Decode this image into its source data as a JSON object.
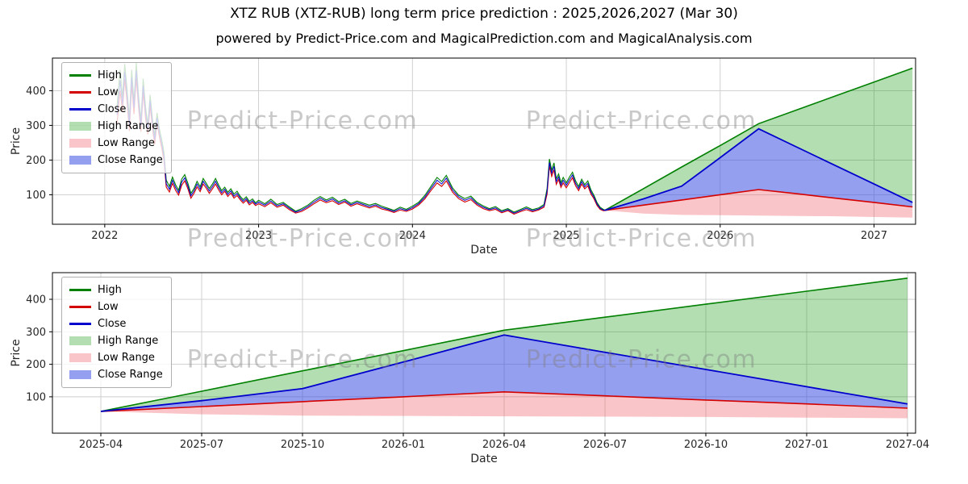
{
  "title": "XTZ RUB (XTZ-RUB) long term price prediction : 2025,2026,2027 (Mar 30)",
  "subtitle": "powered by Predict-Price.com and MagicalPrediction.com and MagicalAnalysis.com",
  "watermark_text": "Predict-Price.com",
  "colors": {
    "high_line": "#008000",
    "low_line": "#d40000",
    "close_line": "#0000cc",
    "high_range": "rgba(0,145,0,0.30)",
    "low_range": "rgba(240,75,85,0.32)",
    "close_range": "rgba(62,80,225,0.55)",
    "grid": "#cccccc",
    "spine": "#000000",
    "tick_text": "#262626",
    "watermark": "#808080"
  },
  "legend": {
    "items": [
      {
        "label": "High",
        "type": "line",
        "color": "high_line"
      },
      {
        "label": "Low",
        "type": "line",
        "color": "low_line"
      },
      {
        "label": "Close",
        "type": "line",
        "color": "close_line"
      },
      {
        "label": "High Range",
        "type": "patch",
        "color": "high_range"
      },
      {
        "label": "Low Range",
        "type": "patch",
        "color": "low_range"
      },
      {
        "label": "Close Range",
        "type": "patch",
        "color": "close_range"
      }
    ]
  },
  "chart_data": [
    {
      "type": "line",
      "title": "",
      "xlabel": "Date",
      "ylabel": "Price",
      "xlim": [
        2021.66,
        2027.27
      ],
      "ylim": [
        15,
        494
      ],
      "grid": true,
      "legend_position": "upper-left",
      "xticks": [
        2022,
        2023,
        2024,
        2025,
        2026,
        2027
      ],
      "xtick_labels": [
        "2022",
        "2023",
        "2024",
        "2025",
        "2026",
        "2027"
      ],
      "yticks": [
        100,
        200,
        300,
        400
      ],
      "ytick_labels": [
        "100",
        "200",
        "300",
        "400"
      ],
      "history": {
        "t": [
          2022.08,
          2022.1,
          2022.115,
          2022.13,
          2022.145,
          2022.16,
          2022.175,
          2022.19,
          2022.205,
          2022.22,
          2022.235,
          2022.25,
          2022.265,
          2022.28,
          2022.295,
          2022.31,
          2022.325,
          2022.34,
          2022.355,
          2022.37,
          2022.385,
          2022.4,
          2022.42,
          2022.44,
          2022.46,
          2022.48,
          2022.5,
          2022.52,
          2022.54,
          2022.56,
          2022.58,
          2022.6,
          2022.62,
          2022.64,
          2022.66,
          2022.68,
          2022.7,
          2022.72,
          2022.74,
          2022.76,
          2022.78,
          2022.8,
          2022.82,
          2022.84,
          2022.86,
          2022.88,
          2022.9,
          2022.92,
          2022.94,
          2022.96,
          2022.98,
          2023.0,
          2023.04,
          2023.08,
          2023.12,
          2023.16,
          2023.2,
          2023.24,
          2023.28,
          2023.32,
          2023.36,
          2023.4,
          2023.44,
          2023.48,
          2023.52,
          2023.56,
          2023.6,
          2023.64,
          2023.68,
          2023.72,
          2023.76,
          2023.8,
          2023.84,
          2023.88,
          2023.92,
          2023.96,
          2024.0,
          2024.04,
          2024.08,
          2024.12,
          2024.16,
          2024.19,
          2024.22,
          2024.26,
          2024.3,
          2024.34,
          2024.38,
          2024.42,
          2024.46,
          2024.5,
          2024.54,
          2024.58,
          2024.62,
          2024.66,
          2024.7,
          2024.74,
          2024.78,
          2024.82,
          2024.855,
          2024.875,
          2024.89,
          2024.905,
          2024.92,
          2024.935,
          2024.95,
          2024.965,
          2024.98,
          2025.0,
          2025.02,
          2025.04,
          2025.06,
          2025.08,
          2025.1,
          2025.12,
          2025.14,
          2025.16,
          2025.18,
          2025.2,
          2025.22,
          2025.24,
          2025.25
        ],
        "close": [
          330,
          430,
          360,
          455,
          385,
          302,
          438,
          350,
          458,
          368,
          298,
          415,
          338,
          288,
          372,
          305,
          258,
          322,
          278,
          248,
          210,
          132,
          116,
          142,
          121,
          106,
          136,
          149,
          126,
          97,
          111,
          131,
          116,
          139,
          126,
          111,
          124,
          139,
          121,
          106,
          116,
          101,
          111,
          96,
          104,
          91,
          81,
          89,
          76,
          83,
          73,
          79,
          70,
          82,
          68,
          74,
          61,
          50,
          56,
          66,
          79,
          90,
          81,
          88,
          76,
          83,
          71,
          78,
          72,
          66,
          71,
          63,
          58,
          52,
          60,
          55,
          63,
          74,
          93,
          118,
          142,
          131,
          148,
          114,
          94,
          84,
          91,
          74,
          64,
          57,
          62,
          51,
          57,
          47,
          54,
          61,
          54,
          59,
          68,
          110,
          193,
          162,
          182,
          138,
          152,
          128,
          142,
          127,
          143,
          157,
          133,
          118,
          138,
          123,
          133,
          108,
          93,
          73,
          61,
          56,
          55
        ],
        "spread": [
          25,
          30,
          20,
          22,
          20,
          18,
          22,
          18,
          22,
          18,
          16,
          20,
          16,
          14,
          16,
          14,
          13,
          14,
          12,
          12,
          12,
          10,
          8,
          9,
          8,
          7,
          9,
          9,
          8,
          7,
          7,
          8,
          7,
          8,
          7,
          7,
          7,
          8,
          7,
          6,
          6,
          6,
          6,
          6,
          6,
          5,
          5,
          5,
          5,
          5,
          4,
          5,
          4,
          5,
          4,
          4,
          4,
          3,
          4,
          4,
          5,
          5,
          4,
          5,
          4,
          4,
          4,
          4,
          4,
          4,
          4,
          4,
          3,
          3,
          4,
          3,
          4,
          4,
          5,
          6,
          8,
          7,
          8,
          6,
          5,
          5,
          5,
          4,
          4,
          3,
          4,
          3,
          3,
          3,
          3,
          4,
          3,
          3,
          4,
          8,
          10,
          9,
          10,
          8,
          8,
          7,
          8,
          7,
          8,
          8,
          7,
          6,
          7,
          6,
          7,
          6,
          5,
          4,
          3,
          2,
          1
        ]
      },
      "forecast": {
        "t": [
          2025.25,
          2025.5,
          2025.75,
          2026.0,
          2026.25,
          2026.5,
          2026.75,
          2027.0,
          2027.25
        ],
        "dates": [
          "2025-04",
          "2025-07",
          "2025-10",
          "2026-01",
          "2026-04",
          "2026-07",
          "2026-10",
          "2027-01",
          "2027-04"
        ],
        "high": [
          55,
          117,
          180,
          242,
          305,
          345,
          385,
          425,
          465
        ],
        "close": [
          55,
          88,
          125,
          207,
          290,
          237,
          184,
          131,
          78
        ],
        "low": [
          55,
          70,
          85,
          100,
          115,
          103,
          90,
          78,
          65
        ],
        "low_band_bottom": [
          55,
          46,
          42,
          41,
          40,
          39,
          38,
          36,
          34
        ]
      }
    },
    {
      "type": "line",
      "title": "",
      "xlabel": "Date",
      "ylabel": "Price",
      "xlim": [
        2025.13,
        2027.27
      ],
      "ylim": [
        -12,
        482
      ],
      "grid": true,
      "legend_position": "upper-left",
      "xticks": [
        2025.25,
        2025.5,
        2025.75,
        2026.0,
        2026.25,
        2026.5,
        2026.75,
        2027.0,
        2027.25
      ],
      "xtick_labels": [
        "2025-04",
        "2025-07",
        "2025-10",
        "2026-01",
        "2026-04",
        "2026-07",
        "2026-10",
        "2027-01",
        "2027-04"
      ],
      "yticks": [
        100,
        200,
        300,
        400
      ],
      "ytick_labels": [
        "100",
        "200",
        "300",
        "400"
      ],
      "forecast": {
        "t": [
          2025.25,
          2025.5,
          2025.75,
          2026.0,
          2026.25,
          2026.5,
          2026.75,
          2027.0,
          2027.25
        ],
        "dates": [
          "2025-04",
          "2025-07",
          "2025-10",
          "2026-01",
          "2026-04",
          "2026-07",
          "2026-10",
          "2027-01",
          "2027-04"
        ],
        "high": [
          55,
          117,
          180,
          242,
          305,
          345,
          385,
          425,
          465
        ],
        "close": [
          55,
          88,
          125,
          207,
          290,
          237,
          184,
          131,
          78
        ],
        "low": [
          55,
          70,
          85,
          100,
          115,
          103,
          90,
          78,
          65
        ],
        "low_band_bottom": [
          55,
          46,
          42,
          41,
          40,
          39,
          38,
          36,
          34
        ]
      }
    }
  ]
}
